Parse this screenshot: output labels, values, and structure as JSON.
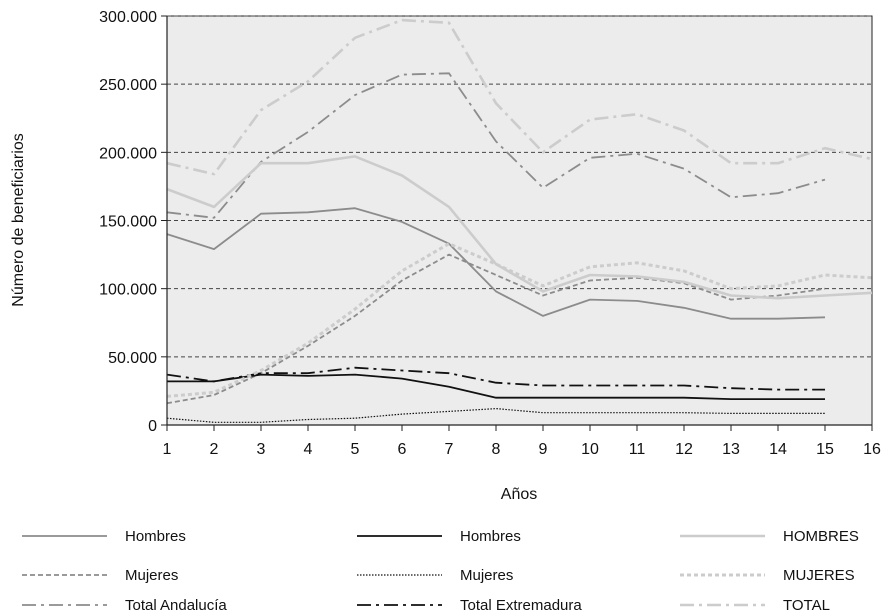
{
  "chart_data": {
    "type": "line",
    "xlabel": "Años",
    "ylabel": "Número de beneficiarios",
    "xlim": [
      1,
      16
    ],
    "ylim": [
      0,
      300000
    ],
    "x_ticks": [
      1,
      2,
      3,
      4,
      5,
      6,
      7,
      8,
      9,
      10,
      11,
      12,
      13,
      14,
      15,
      16
    ],
    "y_ticks": [
      {
        "value": 0,
        "label": "0"
      },
      {
        "value": 50000,
        "label": "50.000"
      },
      {
        "value": 100000,
        "label": "100.000"
      },
      {
        "value": 150000,
        "label": "150.000"
      },
      {
        "value": 200000,
        "label": "200.000"
      },
      {
        "value": 250000,
        "label": "250.000"
      },
      {
        "value": 300000,
        "label": "300.000"
      }
    ],
    "grid": "horizontal dashed",
    "legend_position": "bottom",
    "series": [
      {
        "name": "Hombres",
        "color": "#8c8c8c",
        "style": "solid",
        "x": [
          1,
          2,
          3,
          4,
          5,
          6,
          7,
          8,
          9,
          10,
          11,
          12,
          13,
          14,
          15
        ],
        "values": [
          140000,
          129000,
          155000,
          156000,
          159000,
          149000,
          133000,
          98000,
          80000,
          92000,
          91000,
          86000,
          78000,
          78000,
          79000
        ]
      },
      {
        "name": "Mujeres",
        "color": "#8c8c8c",
        "style": "dashed",
        "x": [
          1,
          2,
          3,
          4,
          5,
          6,
          7,
          8,
          9,
          10,
          11,
          12,
          13,
          14,
          15
        ],
        "values": [
          16000,
          22000,
          38000,
          58000,
          80000,
          106000,
          125000,
          110000,
          95000,
          106000,
          108000,
          104000,
          92000,
          95000,
          100000
        ]
      },
      {
        "name": "Total Andalucía",
        "color": "#8c8c8c",
        "style": "dashdot",
        "x": [
          1,
          2,
          3,
          4,
          5,
          6,
          7,
          8,
          9,
          10,
          11,
          12,
          13,
          14,
          15
        ],
        "values": [
          156000,
          152000,
          193000,
          215000,
          242000,
          257000,
          258000,
          208000,
          174000,
          196000,
          199000,
          188000,
          167000,
          170000,
          180000
        ]
      },
      {
        "name": "Hombres",
        "color": "#111111",
        "style": "solid",
        "x": [
          1,
          2,
          3,
          4,
          5,
          6,
          7,
          8,
          9,
          10,
          11,
          12,
          13,
          14,
          15
        ],
        "values": [
          32000,
          32000,
          37000,
          36000,
          37000,
          34000,
          28000,
          20000,
          20000,
          20000,
          20000,
          20000,
          19000,
          19000,
          19000
        ]
      },
      {
        "name": "Mujeres",
        "color": "#111111",
        "style": "dotted",
        "x": [
          1,
          2,
          3,
          4,
          5,
          6,
          7,
          8,
          9,
          10,
          11,
          12,
          13,
          14,
          15
        ],
        "values": [
          5000,
          2000,
          2000,
          4000,
          5000,
          8000,
          10000,
          12000,
          9000,
          9000,
          9000,
          9000,
          8500,
          8500,
          8500
        ]
      },
      {
        "name": "Total Extremadura",
        "color": "#111111",
        "style": "dashdot",
        "x": [
          1,
          2,
          3,
          4,
          5,
          6,
          7,
          8,
          9,
          10,
          11,
          12,
          13,
          14,
          15
        ],
        "values": [
          37000,
          32000,
          38000,
          38000,
          42000,
          40000,
          38000,
          31000,
          29000,
          29000,
          29000,
          29000,
          27000,
          26000,
          26000
        ]
      },
      {
        "name": "HOMBRES",
        "color": "#cccccc",
        "style": "solid",
        "x": [
          1,
          2,
          3,
          4,
          5,
          6,
          7,
          8,
          9,
          10,
          11,
          12,
          13,
          14,
          15,
          16
        ],
        "values": [
          173000,
          160000,
          192000,
          192000,
          197000,
          183000,
          160000,
          118000,
          98000,
          110000,
          109000,
          105000,
          95000,
          93000,
          95000,
          97000
        ]
      },
      {
        "name": "MUJERES",
        "color": "#cccccc",
        "style": "dotted",
        "x": [
          1,
          2,
          3,
          4,
          5,
          6,
          7,
          8,
          9,
          10,
          11,
          12,
          13,
          14,
          15,
          16
        ],
        "values": [
          21000,
          24000,
          40000,
          60000,
          85000,
          113000,
          133000,
          118000,
          102000,
          116000,
          119000,
          113000,
          100000,
          102000,
          110000,
          108000
        ]
      },
      {
        "name": "TOTAL",
        "color": "#cccccc",
        "style": "dashdot",
        "x": [
          1,
          2,
          3,
          4,
          5,
          6,
          7,
          8,
          9,
          10,
          11,
          12,
          13,
          14,
          15,
          16
        ],
        "values": [
          192000,
          184000,
          231000,
          252000,
          284000,
          297000,
          295000,
          236000,
          200000,
          224000,
          228000,
          216000,
          192000,
          192000,
          203000,
          195000
        ]
      }
    ]
  }
}
